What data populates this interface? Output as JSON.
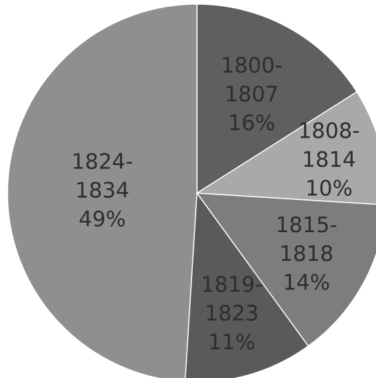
{
  "chart_data": {
    "type": "pie",
    "slices": [
      {
        "label_lines": [
          "1800-",
          "1807"
        ],
        "pct_label": "16%",
        "value": 16,
        "color": "#5f5f61"
      },
      {
        "label_lines": [
          "1808-",
          "1814"
        ],
        "pct_label": "10%",
        "value": 10,
        "color": "#a9a9ab"
      },
      {
        "label_lines": [
          "1815-",
          "1818"
        ],
        "pct_label": "14%",
        "value": 14,
        "color": "#7d7d7f"
      },
      {
        "label_lines": [
          "1819-",
          "1823"
        ],
        "pct_label": "11%",
        "value": 11,
        "color": "#5a5a5c"
      },
      {
        "label_lines": [
          "1824-",
          "1834"
        ],
        "pct_label": "49%",
        "value": 49,
        "color": "#8f8f91"
      }
    ],
    "start_angle_deg": 0,
    "direction": "clockwise",
    "legend": "none",
    "labels_inside": true
  }
}
